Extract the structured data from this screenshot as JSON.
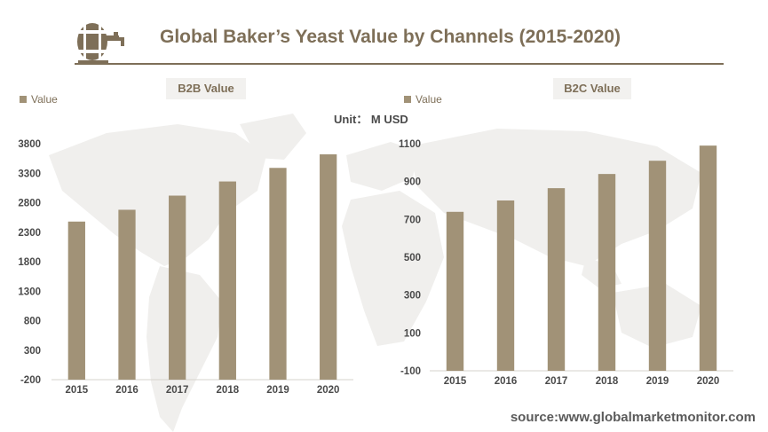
{
  "title": "Global Baker’s Yeast Value by Channels (2015-2020)",
  "unit_label": "Unit：  M  USD",
  "source": "source:www.globalmarketmonitor.com",
  "colors": {
    "accent": "#7e6f58",
    "bar": "#a19277",
    "map": "#f0efed"
  },
  "icons": {
    "logo": "barrel-tap-icon"
  },
  "chart_data": [
    {
      "type": "bar",
      "title": "B2B Value",
      "legend": "Value",
      "categories": [
        "2015",
        "2016",
        "2017",
        "2018",
        "2019",
        "2020"
      ],
      "values": [
        2480,
        2680,
        2920,
        3160,
        3390,
        3620
      ],
      "yticks": [
        "3800",
        "3300",
        "2800",
        "2300",
        "1800",
        "1300",
        "800",
        "300",
        "-200"
      ],
      "ylim": [
        -200,
        3800
      ]
    },
    {
      "type": "bar",
      "title": "B2C Value",
      "legend": "Value",
      "categories": [
        "2015",
        "2016",
        "2017",
        "2018",
        "2019",
        "2020"
      ],
      "values": [
        740,
        800,
        865,
        940,
        1010,
        1090
      ],
      "yticks": [
        "1100",
        "900",
        "700",
        "500",
        "300",
        "100",
        "-100"
      ],
      "ylim": [
        -100,
        1100
      ]
    }
  ]
}
